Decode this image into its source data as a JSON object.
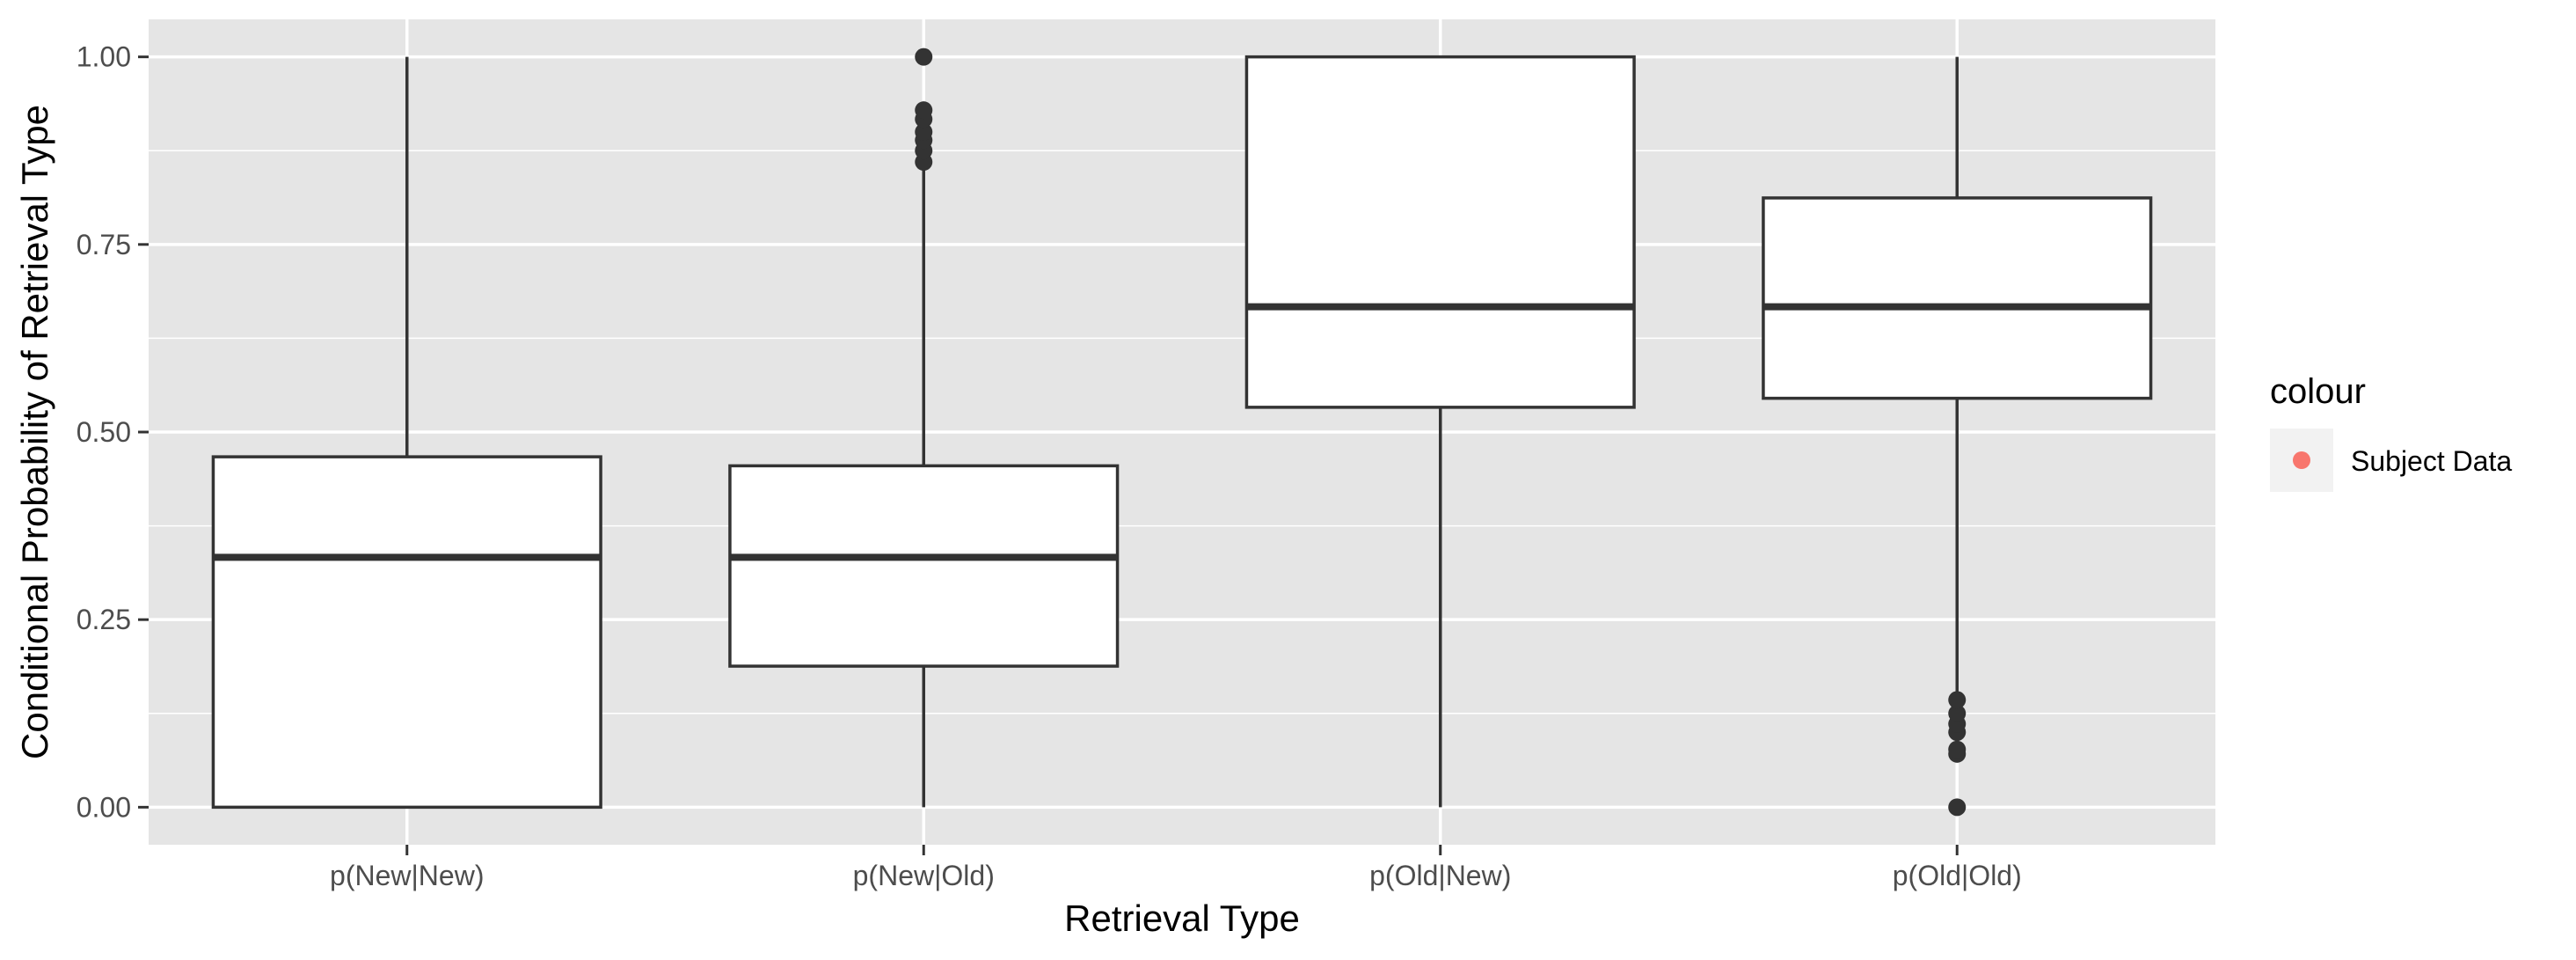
{
  "chart_data": {
    "type": "boxplot",
    "xlabel": "Retrieval Type",
    "ylabel": "Conditional Probability of Retrieval Type",
    "ylim": [
      -0.05,
      1.05
    ],
    "yticks": [
      0.0,
      0.25,
      0.5,
      0.75,
      1.0
    ],
    "ytick_labels": [
      "0.00",
      "0.25",
      "0.50",
      "0.75",
      "1.00"
    ],
    "grid": true,
    "legend": {
      "title": "colour",
      "entries": [
        {
          "label": "Subject Data",
          "color": "#F8766D"
        }
      ],
      "placement": "right"
    },
    "categories": [
      "p(New|New)",
      "p(New|Old)",
      "p(Old|New)",
      "p(Old|Old)"
    ],
    "boxes": [
      {
        "category": "p(New|New)",
        "whisker_low": 0.0,
        "q1": 0.0,
        "median": 0.333,
        "q3": 0.467,
        "whisker_high": 1.0,
        "outliers": []
      },
      {
        "category": "p(New|Old)",
        "whisker_low": 0.0,
        "q1": 0.188,
        "median": 0.333,
        "q3": 0.455,
        "whisker_high": 0.857,
        "outliers": [
          0.86,
          0.875,
          0.889,
          0.9,
          0.917,
          0.929,
          1.0
        ]
      },
      {
        "category": "p(Old|New)",
        "whisker_low": 0.0,
        "q1": 0.533,
        "median": 0.667,
        "q3": 1.0,
        "whisker_high": 1.0,
        "outliers": []
      },
      {
        "category": "p(Old|Old)",
        "whisker_low": 0.143,
        "q1": 0.545,
        "median": 0.667,
        "q3": 0.812,
        "whisker_high": 1.0,
        "outliers": [
          0.0,
          0.071,
          0.077,
          0.1,
          0.111,
          0.125,
          0.143
        ]
      }
    ],
    "colors": {
      "panel_background": "#E5E5E5",
      "grid": "#FFFFFF",
      "box_fill": "#FFFFFF",
      "box_line": "#333333",
      "point": "#333333"
    }
  }
}
